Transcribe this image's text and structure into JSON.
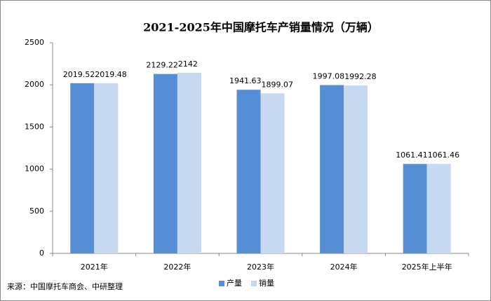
{
  "chart_data": {
    "type": "bar",
    "title": "2021-2025年中国摩托车产销量情况（万辆）",
    "categories": [
      "2021年",
      "2022年",
      "2023年",
      "2024年",
      "2025年上半年"
    ],
    "series": [
      {
        "name": "产量",
        "color": "#558ed5",
        "values": [
          2019.52,
          2129.22,
          1941.63,
          1997.08,
          1061.41
        ]
      },
      {
        "name": "销量",
        "color": "#c6d9f1",
        "values": [
          2019.48,
          2142,
          1899.07,
          1992.28,
          1061.46
        ]
      }
    ],
    "ylim": [
      0,
      2500
    ],
    "yticks": [
      0,
      500,
      1000,
      1500,
      2000,
      2500
    ],
    "legend": "bottom",
    "source": "来源：中国摩托车商会、中研整理"
  }
}
